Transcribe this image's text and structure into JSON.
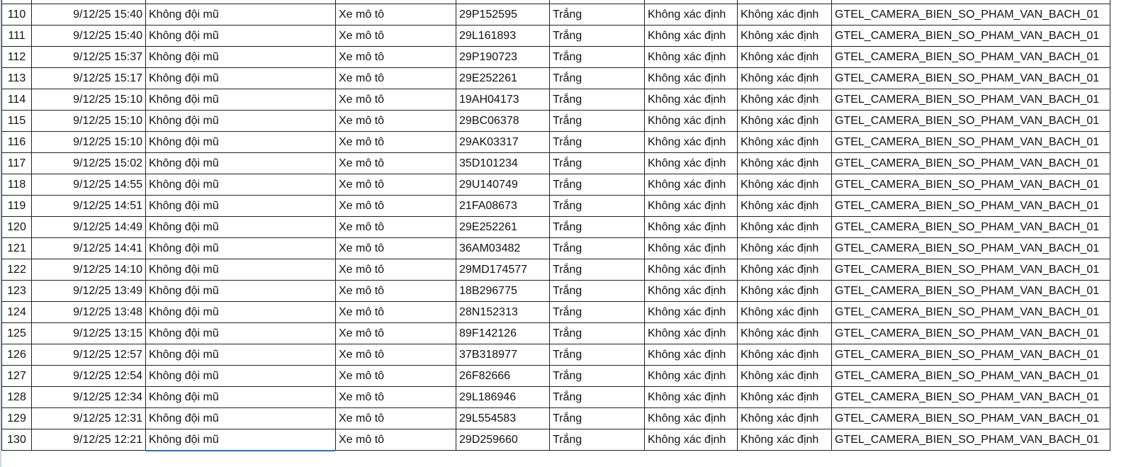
{
  "sheet": {
    "rows": [
      {
        "stt": "110",
        "time": "9/12/25 15:40",
        "violation": "Không đội mũ",
        "vehicle": "Xe mô tô",
        "plate": "29P152595",
        "color": "Trắng",
        "c7": "Không xác định",
        "c8": "Không xác định",
        "camera": "GTEL_CAMERA_BIEN_SO_PHAM_VAN_BACH_01"
      },
      {
        "stt": "111",
        "time": "9/12/25 15:40",
        "violation": "Không đội mũ",
        "vehicle": "Xe mô tô",
        "plate": "29L161893",
        "color": "Trắng",
        "c7": "Không xác định",
        "c8": "Không xác định",
        "camera": "GTEL_CAMERA_BIEN_SO_PHAM_VAN_BACH_01"
      },
      {
        "stt": "112",
        "time": "9/12/25 15:37",
        "violation": "Không đội mũ",
        "vehicle": "Xe mô tô",
        "plate": "29P190723",
        "color": "Trắng",
        "c7": "Không xác định",
        "c8": "Không xác định",
        "camera": "GTEL_CAMERA_BIEN_SO_PHAM_VAN_BACH_01"
      },
      {
        "stt": "113",
        "time": "9/12/25 15:17",
        "violation": "Không đội mũ",
        "vehicle": "Xe mô tô",
        "plate": "29E252261",
        "color": "Trắng",
        "c7": "Không xác định",
        "c8": "Không xác định",
        "camera": "GTEL_CAMERA_BIEN_SO_PHAM_VAN_BACH_01"
      },
      {
        "stt": "114",
        "time": "9/12/25 15:10",
        "violation": "Không đội mũ",
        "vehicle": "Xe mô tô",
        "plate": "19AH04173",
        "color": "Trắng",
        "c7": "Không xác định",
        "c8": "Không xác định",
        "camera": "GTEL_CAMERA_BIEN_SO_PHAM_VAN_BACH_01"
      },
      {
        "stt": "115",
        "time": "9/12/25 15:10",
        "violation": "Không đội mũ",
        "vehicle": "Xe mô tô",
        "plate": "29BC06378",
        "color": "Trắng",
        "c7": "Không xác định",
        "c8": "Không xác định",
        "camera": "GTEL_CAMERA_BIEN_SO_PHAM_VAN_BACH_01"
      },
      {
        "stt": "116",
        "time": "9/12/25 15:10",
        "violation": "Không đội mũ",
        "vehicle": "Xe mô tô",
        "plate": "29AK03317",
        "color": "Trắng",
        "c7": "Không xác định",
        "c8": "Không xác định",
        "camera": "GTEL_CAMERA_BIEN_SO_PHAM_VAN_BACH_01"
      },
      {
        "stt": "117",
        "time": "9/12/25 15:02",
        "violation": "Không đội mũ",
        "vehicle": "Xe mô tô",
        "plate": "35D101234",
        "color": "Trắng",
        "c7": "Không xác định",
        "c8": "Không xác định",
        "camera": "GTEL_CAMERA_BIEN_SO_PHAM_VAN_BACH_01"
      },
      {
        "stt": "118",
        "time": "9/12/25 14:55",
        "violation": "Không đội mũ",
        "vehicle": "Xe mô tô",
        "plate": "29U140749",
        "color": "Trắng",
        "c7": "Không xác định",
        "c8": "Không xác định",
        "camera": "GTEL_CAMERA_BIEN_SO_PHAM_VAN_BACH_01"
      },
      {
        "stt": "119",
        "time": "9/12/25 14:51",
        "violation": "Không đội mũ",
        "vehicle": "Xe mô tô",
        "plate": "21FA08673",
        "color": "Trắng",
        "c7": "Không xác định",
        "c8": "Không xác định",
        "camera": "GTEL_CAMERA_BIEN_SO_PHAM_VAN_BACH_01"
      },
      {
        "stt": "120",
        "time": "9/12/25 14:49",
        "violation": "Không đội mũ",
        "vehicle": "Xe mô tô",
        "plate": "29E252261",
        "color": "Trắng",
        "c7": "Không xác định",
        "c8": "Không xác định",
        "camera": "GTEL_CAMERA_BIEN_SO_PHAM_VAN_BACH_01"
      },
      {
        "stt": "121",
        "time": "9/12/25 14:41",
        "violation": "Không đội mũ",
        "vehicle": "Xe mô tô",
        "plate": "36AM03482",
        "color": "Trắng",
        "c7": "Không xác định",
        "c8": "Không xác định",
        "camera": "GTEL_CAMERA_BIEN_SO_PHAM_VAN_BACH_01"
      },
      {
        "stt": "122",
        "time": "9/12/25 14:10",
        "violation": "Không đội mũ",
        "vehicle": "Xe mô tô",
        "plate": "29MD174577",
        "color": "Trắng",
        "c7": "Không xác định",
        "c8": "Không xác định",
        "camera": "GTEL_CAMERA_BIEN_SO_PHAM_VAN_BACH_01"
      },
      {
        "stt": "123",
        "time": "9/12/25 13:49",
        "violation": "Không đội mũ",
        "vehicle": "Xe mô tô",
        "plate": "18B296775",
        "color": "Trắng",
        "c7": "Không xác định",
        "c8": "Không xác định",
        "camera": "GTEL_CAMERA_BIEN_SO_PHAM_VAN_BACH_01"
      },
      {
        "stt": "124",
        "time": "9/12/25 13:48",
        "violation": "Không đội mũ",
        "vehicle": "Xe mô tô",
        "plate": "28N152313",
        "color": "Trắng",
        "c7": "Không xác định",
        "c8": "Không xác định",
        "camera": "GTEL_CAMERA_BIEN_SO_PHAM_VAN_BACH_01"
      },
      {
        "stt": "125",
        "time": "9/12/25 13:15",
        "violation": "Không đội mũ",
        "vehicle": "Xe mô tô",
        "plate": "89F142126",
        "color": "Trắng",
        "c7": "Không xác định",
        "c8": "Không xác định",
        "camera": "GTEL_CAMERA_BIEN_SO_PHAM_VAN_BACH_01"
      },
      {
        "stt": "126",
        "time": "9/12/25 12:57",
        "violation": "Không đội mũ",
        "vehicle": "Xe mô tô",
        "plate": "37B318977",
        "color": "Trắng",
        "c7": "Không xác định",
        "c8": "Không xác định",
        "camera": "GTEL_CAMERA_BIEN_SO_PHAM_VAN_BACH_01"
      },
      {
        "stt": "127",
        "time": "9/12/25 12:54",
        "violation": "Không đội mũ",
        "vehicle": "Xe mô tô",
        "plate": "26F82666",
        "color": "Trắng",
        "c7": "Không xác định",
        "c8": "Không xác định",
        "camera": "GTEL_CAMERA_BIEN_SO_PHAM_VAN_BACH_01"
      },
      {
        "stt": "128",
        "time": "9/12/25 12:34",
        "violation": "Không đội mũ",
        "vehicle": "Xe mô tô",
        "plate": "29L186946",
        "color": "Trắng",
        "c7": "Không xác định",
        "c8": "Không xác định",
        "camera": "GTEL_CAMERA_BIEN_SO_PHAM_VAN_BACH_01"
      },
      {
        "stt": "129",
        "time": "9/12/25 12:31",
        "violation": "Không đội mũ",
        "vehicle": "Xe mô tô",
        "plate": "29L554583",
        "color": "Trắng",
        "c7": "Không xác định",
        "c8": "Không xác định",
        "camera": "GTEL_CAMERA_BIEN_SO_PHAM_VAN_BACH_01"
      },
      {
        "stt": "130",
        "time": "9/12/25 12:21",
        "violation": "Không đội mũ",
        "vehicle": "Xe mô tô",
        "plate": "29D259660",
        "color": "Trắng",
        "c7": "Không xác định",
        "c8": "Không xác định",
        "camera": "GTEL_CAMERA_BIEN_SO_PHAM_VAN_BACH_01"
      }
    ]
  },
  "colors": {
    "selection": "#1f6fd1",
    "border": "#222222"
  }
}
